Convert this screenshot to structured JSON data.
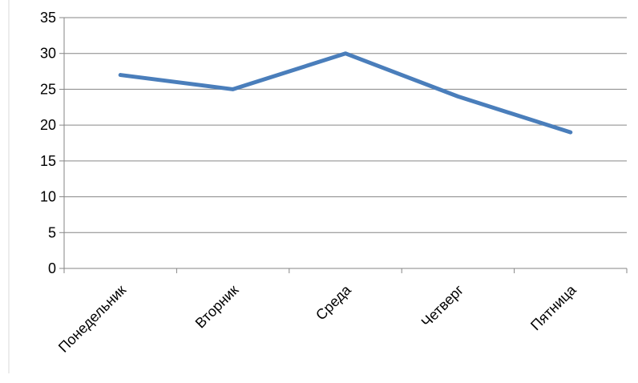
{
  "chart_data": {
    "type": "line",
    "title": "",
    "xlabel": "",
    "ylabel": "",
    "categories": [
      "Понедельник",
      "Вторник",
      "Среда",
      "Четверг",
      "Пятница"
    ],
    "series": [
      {
        "values": [
          27,
          25,
          30,
          24,
          19
        ]
      }
    ],
    "ylim": [
      0,
      35
    ],
    "yticks": [
      0,
      5,
      10,
      15,
      20,
      25,
      30,
      35
    ],
    "grid": true,
    "legend": "none",
    "colors": {
      "line": "#4a7ebb",
      "grid": "#868686",
      "axis": "#868686"
    }
  }
}
